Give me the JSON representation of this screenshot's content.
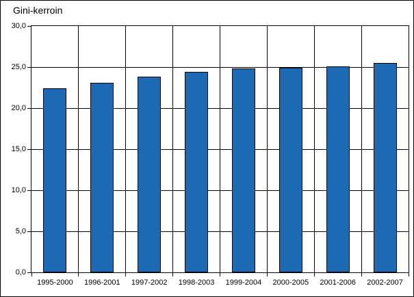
{
  "chart_data": {
    "type": "bar",
    "title": "Gini-kerroin",
    "xlabel": "",
    "ylabel": "",
    "categories": [
      "1995-2000",
      "1996-2001",
      "1997-2002",
      "1998-2003",
      "1999-2004",
      "2000-2005",
      "2001-2006",
      "2002-2007"
    ],
    "values": [
      22.4,
      23.1,
      23.8,
      24.4,
      24.8,
      24.9,
      25.1,
      25.5
    ],
    "ylim": [
      0,
      30
    ],
    "ytick_step": 5,
    "ytick_labels": [
      "0,0",
      "5,0",
      "10,0",
      "15,0",
      "20,0",
      "25,0",
      "30,0"
    ],
    "grid": true,
    "legend": "none",
    "bar_color": "#1b6ab3",
    "bar_border_color": "#000000",
    "grid_color": "#000000"
  }
}
